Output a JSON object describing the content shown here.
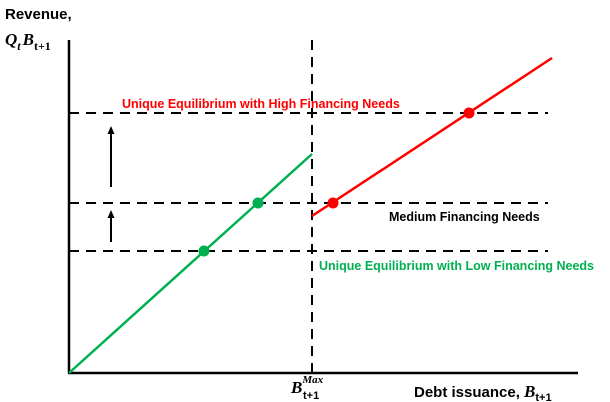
{
  "axes": {
    "y_label_line1": "Revenue,",
    "y_label_math": {
      "main": "Q",
      "main_sub": "t",
      "var": "B",
      "var_sub": "t+1"
    },
    "x_label_text": "Debt issuance, ",
    "x_label_math": {
      "var": "B",
      "var_sub": "t+1"
    },
    "x_tick_math": {
      "var": "B",
      "sub": "t+1",
      "sup": "Max"
    }
  },
  "levels": {
    "high": "Unique Equilibrium with High Financing Needs",
    "medium": "Medium Financing Needs",
    "low": "Unique Equilibrium with Low Financing Needs"
  },
  "colors": {
    "green": "#00b050",
    "red": "#ff0000",
    "black": "#000000"
  },
  "icons": [
    "up-arrow-icon",
    "up-arrow-icon"
  ]
}
